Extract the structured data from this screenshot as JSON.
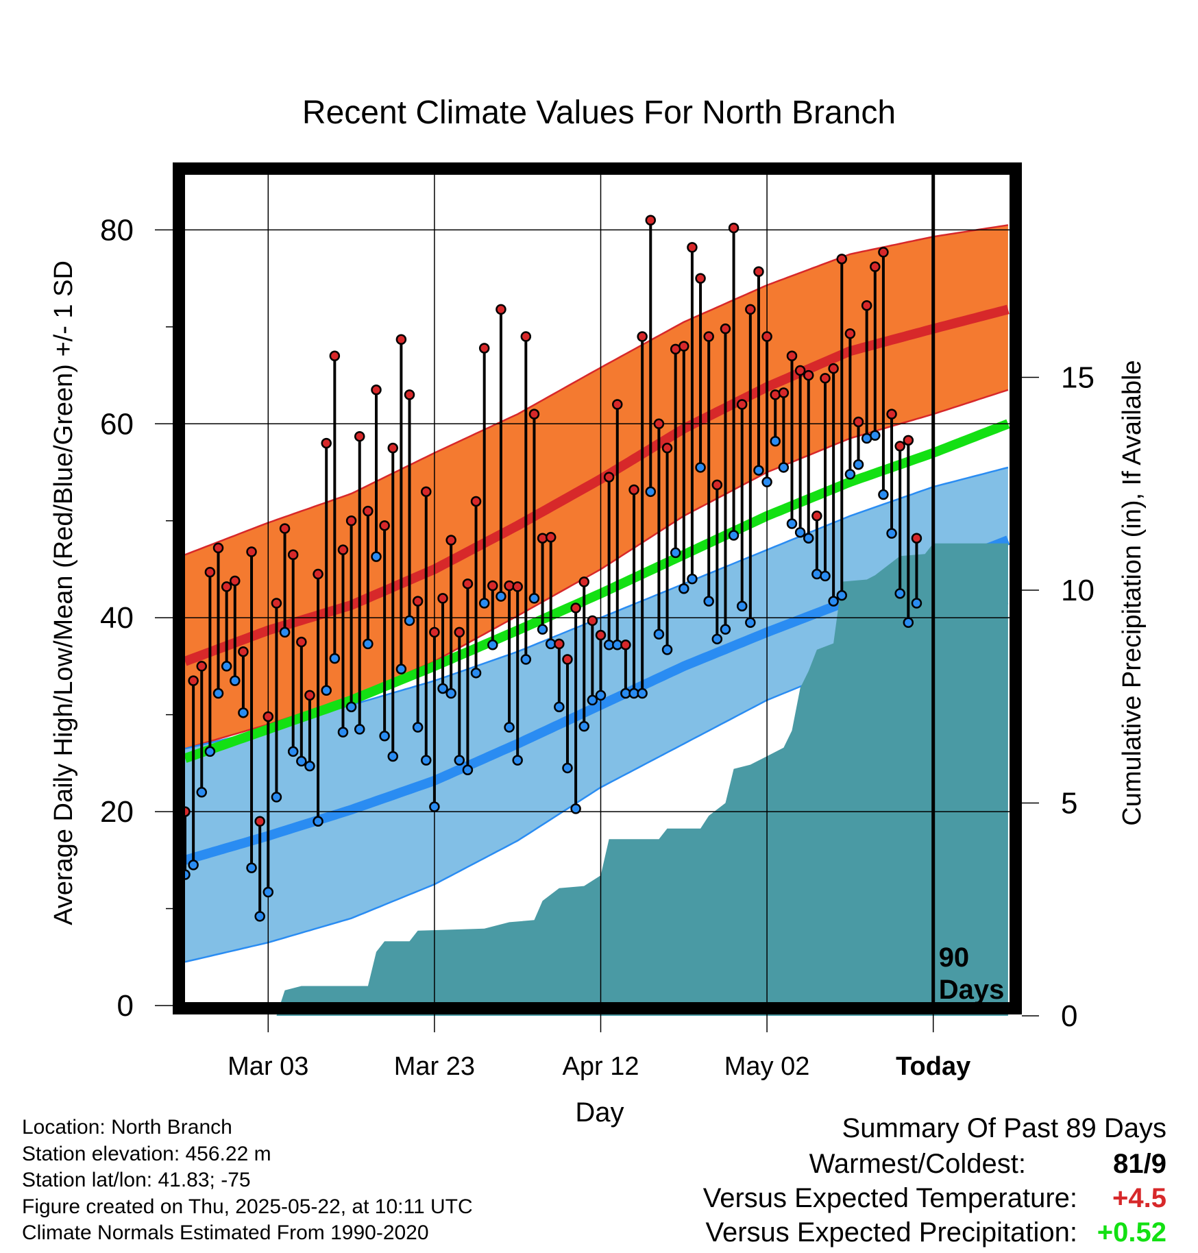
{
  "chart_data": {
    "type": "line",
    "title": "Recent Climate Values For North Branch",
    "xlabel": "Day",
    "ylabel": "Average Daily High/Low/Mean (Red/Blue/Green) +/- 1 SD",
    "y2label": "Cumulative Precipitation (in), If Available",
    "ylim": [
      0,
      80
    ],
    "y2lim": [
      0,
      15
    ],
    "y_ticks": [
      "0",
      "20",
      "40",
      "60",
      "80"
    ],
    "y2_ticks": [
      "0",
      "5",
      "10",
      "15"
    ],
    "x_ticks": [
      {
        "label": "Mar 03",
        "day": 10
      },
      {
        "label": "Mar 23",
        "day": 30
      },
      {
        "label": "Apr 12",
        "day": 50
      },
      {
        "label": "May 02",
        "day": 70
      },
      {
        "label": "Today",
        "day": 90
      }
    ],
    "today_marker": {
      "day": 90,
      "label_line1": "90",
      "label_line2": "Days"
    },
    "grid": true,
    "normals": {
      "days": [
        0,
        10,
        20,
        30,
        40,
        50,
        60,
        70,
        80,
        90,
        99
      ],
      "high_mean": [
        35.5,
        38.7,
        41.3,
        45.0,
        49.5,
        54.3,
        59.5,
        63.8,
        67.5,
        69.8,
        71.8
      ],
      "high_upper": [
        46.5,
        49.8,
        52.8,
        57.0,
        61.0,
        65.8,
        70.5,
        74.3,
        77.5,
        79.3,
        80.5
      ],
      "high_lower": [
        26.5,
        29.0,
        31.8,
        35.5,
        40.2,
        45.0,
        50.5,
        55.0,
        58.5,
        61.0,
        63.5
      ],
      "mean": [
        25.5,
        28.5,
        31.5,
        35.0,
        38.7,
        42.5,
        46.5,
        50.5,
        54.0,
        57.0,
        60.0
      ],
      "low_mean": [
        15.0,
        17.5,
        20.2,
        23.2,
        27.0,
        31.0,
        35.0,
        38.5,
        41.8,
        45.0,
        48.0
      ],
      "low_upper": [
        26.5,
        28.5,
        31.0,
        33.5,
        36.5,
        40.0,
        43.5,
        47.0,
        50.5,
        53.5,
        55.5
      ],
      "low_lower": [
        4.5,
        6.5,
        9.0,
        12.5,
        17.0,
        22.5,
        27.0,
        31.5,
        35.0,
        38.5,
        41.5
      ]
    },
    "series": [
      {
        "name": "High",
        "values": [
          20,
          33.5,
          35,
          44.7,
          47.2,
          43.2,
          43.8,
          36.5,
          46.8,
          19,
          29.8,
          41.5,
          49.2,
          46.5,
          37.5,
          32,
          44.5,
          58,
          67,
          47,
          50,
          58.7,
          51,
          63.5,
          49.5,
          57.5,
          68.7,
          63,
          41.7,
          53,
          38.5,
          42,
          48,
          38.5,
          43.5,
          52,
          67.8,
          43.3,
          71.8,
          43.3,
          43.2,
          69,
          61,
          48.2,
          48.3,
          37.3,
          35.7,
          41,
          43.7,
          39.7,
          38.2,
          54.5,
          62,
          37.2,
          53.2,
          69,
          81,
          60,
          57.5,
          67.7,
          68,
          78.2,
          75,
          69,
          53.7,
          69.8,
          80.2,
          62,
          71.8,
          75.7,
          69,
          63,
          63.2,
          67,
          65.5,
          65,
          50.5,
          64.7,
          65.7,
          77,
          69.3,
          60.2,
          72.2,
          76.2,
          77.7,
          61,
          57.7,
          58.3,
          48.2
        ]
      },
      {
        "name": "Low",
        "values": [
          13.5,
          14.5,
          22,
          26.2,
          32.2,
          35,
          33.5,
          30.2,
          14.2,
          9.2,
          11.7,
          21.5,
          38.5,
          26.2,
          25.2,
          24.7,
          19,
          32.5,
          35.8,
          28.2,
          30.8,
          28.5,
          37.3,
          46.3,
          27.8,
          25.7,
          34.7,
          39.7,
          28.7,
          25.3,
          20.5,
          32.7,
          32.2,
          25.3,
          24.3,
          34.3,
          41.5,
          37.2,
          42.2,
          28.7,
          25.3,
          35.7,
          42,
          38.8,
          37.3,
          30.8,
          24.5,
          20.3,
          28.8,
          31.5,
          32,
          37.2,
          37.2,
          32.2,
          32.2,
          32.2,
          53,
          38.3,
          36.7,
          46.7,
          43,
          44,
          55.5,
          41.7,
          37.8,
          38.8,
          48.5,
          41.2,
          39.5,
          55.2,
          54,
          58.2,
          55.5,
          49.7,
          48.8,
          48.2,
          44.5,
          44.3,
          41.7,
          42.3,
          54.8,
          55.8,
          58.5,
          58.8,
          52.7,
          48.7,
          42.5,
          39.5,
          41.5
        ]
      },
      {
        "name": "Cumulative Precipitation",
        "steps": [
          [
            0,
            0
          ],
          [
            11,
            0
          ],
          [
            12,
            0.6
          ],
          [
            14,
            0.7
          ],
          [
            22,
            0.7
          ],
          [
            23,
            1.5
          ],
          [
            24,
            1.75
          ],
          [
            27,
            1.75
          ],
          [
            28,
            2.0
          ],
          [
            36,
            2.05
          ],
          [
            39,
            2.2
          ],
          [
            42,
            2.25
          ],
          [
            43,
            2.7
          ],
          [
            45,
            3.0
          ],
          [
            48,
            3.05
          ],
          [
            50,
            3.3
          ],
          [
            51,
            4.15
          ],
          [
            57,
            4.15
          ],
          [
            58,
            4.4
          ],
          [
            62,
            4.4
          ],
          [
            63,
            4.7
          ],
          [
            65,
            5.0
          ],
          [
            66,
            5.8
          ],
          [
            68,
            5.9
          ],
          [
            70,
            6.1
          ],
          [
            72,
            6.3
          ],
          [
            73,
            6.7
          ],
          [
            74,
            7.7
          ],
          [
            75,
            8.1
          ],
          [
            76,
            8.6
          ],
          [
            78,
            8.75
          ],
          [
            79,
            10.2
          ],
          [
            82,
            10.25
          ],
          [
            83,
            10.35
          ],
          [
            84,
            10.5
          ],
          [
            86,
            10.8
          ],
          [
            89,
            10.85
          ],
          [
            90,
            11.1
          ],
          [
            99,
            11.1
          ]
        ]
      }
    ]
  },
  "colors": {
    "high_band": "#f47a30",
    "high_line": "#d7282a",
    "low_band": "#82bfe6",
    "low_line": "#2a8cf2",
    "mean_line": "#13e013",
    "precip": "#4a9aa4",
    "marker_high": "#d7282a",
    "marker_low": "#2a8cf2",
    "value_warm": "#d7282a",
    "value_precip": "#13e013"
  },
  "info": {
    "location": "Location: North Branch",
    "elevation": "Station elevation: 456.22 m",
    "latlon": "Station lat/lon: 41.83; -75",
    "created": "Figure created on Thu, 2025-05-22, at 10:11 UTC",
    "normals": "Climate Normals Estimated From 1990-2020"
  },
  "summary": {
    "title": "Summary Of Past 89 Days",
    "warmest_label": "Warmest/Coldest:",
    "warmest_value": "81/9",
    "temp_label": "Versus Expected Temperature:",
    "temp_value": "+4.5",
    "precip_label": "Versus Expected Precipitation:",
    "precip_value": "+0.52"
  }
}
